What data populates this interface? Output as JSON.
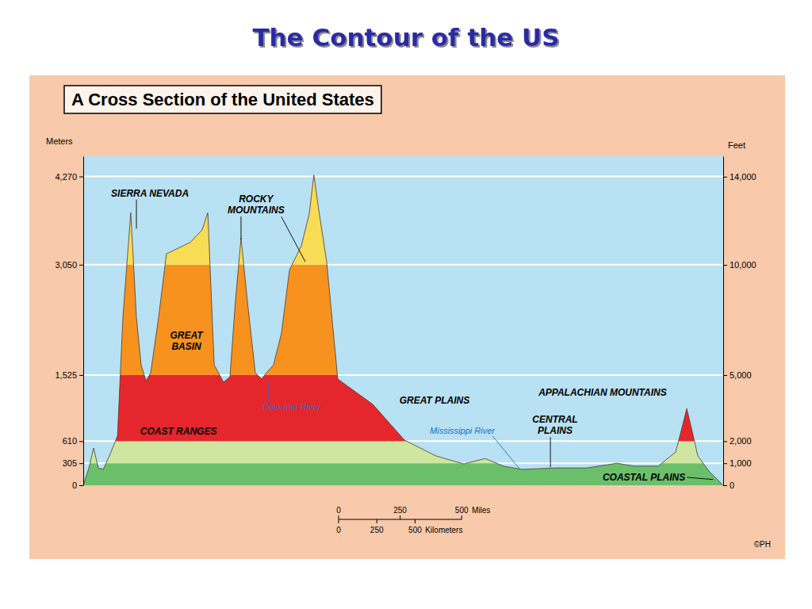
{
  "title": "The Contour of the US",
  "chart_data": {
    "type": "area",
    "title": "A Cross Section of the United States",
    "y_label": "Meters",
    "y2_label": "Feet",
    "x": [
      0,
      23,
      42,
      61,
      81,
      106,
      139,
      161,
      193,
      216,
      235,
      255,
      274,
      306,
      338,
      435,
      483,
      506,
      532,
      570,
      596,
      618,
      641,
      667,
      699,
      725,
      744,
      773,
      805,
      838,
      886,
      918,
      937,
      957,
      989,
      1034,
      1176,
      1305,
      1434,
      1546,
      1633,
      1708,
      1782,
      1917,
      2046,
      2168,
      2239,
      2336,
      2407,
      2432,
      2452,
      2471,
      2497,
      2545,
      2600
    ],
    "values": [
      0,
      240,
      515,
      240,
      220,
      405,
      680,
      2320,
      3770,
      2320,
      1665,
      1445,
      1555,
      2320,
      3200,
      3360,
      3530,
      3770,
      1665,
      1425,
      1500,
      2540,
      3420,
      2540,
      1555,
      1470,
      1555,
      1665,
      2100,
      2980,
      3310,
      3750,
      4290,
      3800,
      3090,
      1470,
      1120,
      625,
      405,
      295,
      370,
      265,
      220,
      240,
      240,
      305,
      265,
      265,
      460,
      790,
      1060,
      790,
      405,
      185,
      0
    ],
    "xlim": [
      0,
      2600
    ],
    "ylim": [
      0,
      4550
    ],
    "yticks": [
      0,
      305,
      610,
      {
        "value": 1525,
        "label": "1,525"
      },
      {
        "value": 3050,
        "label": "3,050"
      },
      {
        "value": 4270,
        "label": "4,270"
      }
    ],
    "y2lim": [
      0,
      14930
    ],
    "y2ticks": [
      0,
      {
        "value": 1000,
        "label": "1,000"
      },
      {
        "value": 2000,
        "label": "2,000"
      },
      {
        "value": 5000,
        "label": "5,000"
      },
      {
        "value": 10000,
        "label": "10,000"
      },
      {
        "value": 14000,
        "label": "14,000"
      }
    ],
    "tick_labels": "y",
    "grid": true,
    "bands": [
      {
        "from": 0,
        "to": 305,
        "color": "#6cbf6a"
      },
      {
        "from": 305,
        "to": 610,
        "color": "#cfe6a0"
      },
      {
        "from": 610,
        "to": 1525,
        "color": "#e5262c"
      },
      {
        "from": 1525,
        "to": 3050,
        "color": "#f7921e"
      },
      {
        "from": 3050,
        "to": 4550,
        "color": "#f8dc55"
      }
    ],
    "annotations": [
      {
        "text": "SIERRA NEVADA",
        "x": 271,
        "y": 4040,
        "leaders": [
          [
            216,
            3550
          ]
        ]
      },
      {
        "text": "ROCKY MOUNTAINS",
        "x": 702,
        "y": 3880,
        "leaders": [
          [
            641,
            3400
          ],
          [
            902,
            3090
          ]
        ]
      },
      {
        "text": "GREAT BASIN",
        "x": 419,
        "y": 1990
      },
      {
        "text": "Colorado River",
        "x": 847,
        "y": 1085,
        "leaders": [
          [
            751,
            1446
          ]
        ]
      },
      {
        "text": "COAST RANGES",
        "x": 387,
        "y": 745
      },
      {
        "text": "GREAT PLAINS",
        "x": 1427,
        "y": 1172
      },
      {
        "text": "Mississippi River",
        "x": 1540,
        "y": 756,
        "leaders": [
          [
            1772,
            230
          ]
        ]
      },
      {
        "text": "CENTRAL PLAINS",
        "x": 1917,
        "y": 830,
        "leaders": [
          [
            1898,
            250
          ]
        ]
      },
      {
        "text": "APPALACHIAN MOUNTAINS",
        "x": 2110,
        "y": 1281
      },
      {
        "text": "COASTAL PLAINS",
        "x": 2278,
        "y": 110,
        "leaders": [
          [
            2560,
            80
          ]
        ]
      }
    ],
    "scale_bar": {
      "miles": [
        0,
        250,
        500
      ],
      "miles_label": "Miles",
      "kilometers": [
        0,
        250,
        500
      ],
      "kilometers_label": "Kilometers"
    },
    "credit": "©PH"
  }
}
